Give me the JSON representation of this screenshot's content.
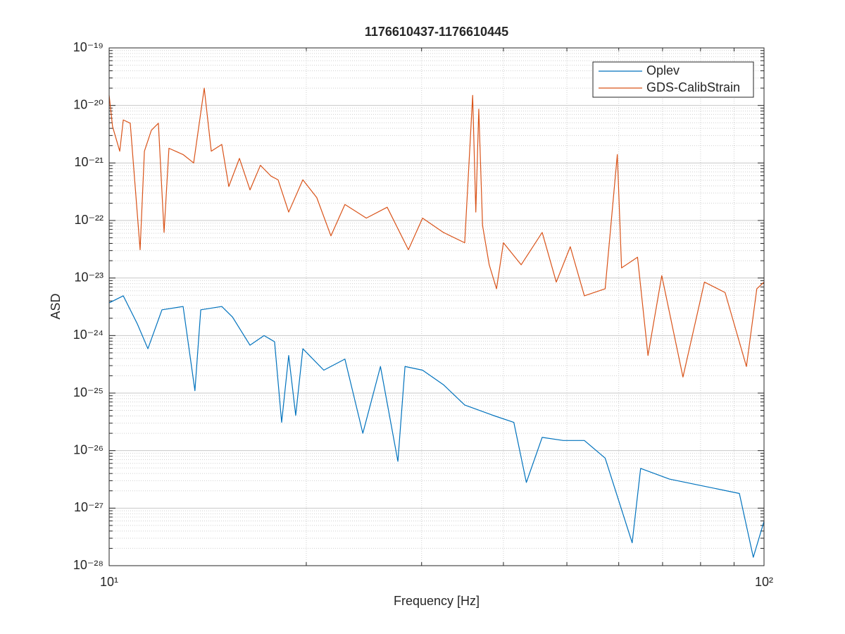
{
  "chart_data": {
    "type": "line",
    "title": "1176610437-1176610445",
    "xlabel": "Frequency [Hz]",
    "ylabel": "ASD",
    "xscale": "log",
    "yscale": "log",
    "grid": true,
    "minor_grid": true,
    "legend": "upper right",
    "xlim": [
      10,
      100
    ],
    "xticks": [
      {
        "value": 10,
        "label": "10¹"
      },
      {
        "value": 100,
        "label": "10²"
      }
    ],
    "ylim": [
      1e-28,
      1e-19
    ],
    "yticks": [
      {
        "value": 1e-28,
        "label": "10⁻²⁸"
      },
      {
        "value": 1e-27,
        "label": "10⁻²⁷"
      },
      {
        "value": 1e-26,
        "label": "10⁻²⁶"
      },
      {
        "value": 1e-25,
        "label": "10⁻²⁵"
      },
      {
        "value": 1e-24,
        "label": "10⁻²⁴"
      },
      {
        "value": 1e-23,
        "label": "10⁻²³"
      },
      {
        "value": 1e-22,
        "label": "10⁻²²"
      },
      {
        "value": 1e-21,
        "label": "10⁻²¹"
      },
      {
        "value": 1e-20,
        "label": "10⁻²⁰"
      },
      {
        "value": 1e-19,
        "label": "10⁻¹⁹"
      }
    ],
    "series": [
      {
        "name": "Oplev",
        "color": "#0072BD",
        "x": [
          10,
          10.51,
          11.04,
          11.46,
          12.04,
          12.97,
          13.52,
          13.8,
          14.86,
          15.43,
          16.41,
          17.24,
          17.89,
          18.34,
          18.8,
          19.27,
          19.76,
          21.27,
          22.91,
          24.4,
          25.96,
          27.6,
          28.3,
          30.1,
          32.39,
          34.91,
          38.56,
          41.49,
          43.36,
          45.84,
          49.37,
          53.17,
          57.2,
          62.9,
          64.8,
          71.7,
          81.1,
          91.7,
          96.3,
          100
        ],
        "values": [
          3.7e-24,
          4.9e-24,
          1.6e-24,
          5.9e-25,
          2.8e-24,
          3.2e-24,
          1.1e-25,
          2.8e-24,
          3.2e-24,
          2.1e-24,
          6.8e-25,
          1e-24,
          7.8e-25,
          3.1e-26,
          4.5e-25,
          4.1e-26,
          5.9e-25,
          2.5e-25,
          3.9e-25,
          2e-26,
          2.9e-25,
          6.5e-27,
          2.9e-25,
          2.5e-25,
          1.4e-25,
          6.2e-26,
          4.1e-26,
          3.1e-26,
          2.8e-27,
          1.7e-26,
          1.5e-26,
          1.5e-26,
          7.4e-27,
          2.5e-28,
          4.9e-27,
          3.2e-27,
          2.4e-27,
          1.8e-27,
          1.4e-28,
          5.9e-28
        ]
      },
      {
        "name": "GDS-CalibStrain",
        "color": "#D95319",
        "x": [
          10,
          10.12,
          10.38,
          10.51,
          10.77,
          11.15,
          11.32,
          11.6,
          11.89,
          12.13,
          12.34,
          12.97,
          13.46,
          13.97,
          14.32,
          14.86,
          15.23,
          15.81,
          16.41,
          17.02,
          17.67,
          18.11,
          18.8,
          19.76,
          20.75,
          21.81,
          22.91,
          24.7,
          26.58,
          28.64,
          30.1,
          32.39,
          34.91,
          35.9,
          36.3,
          36.68,
          37.17,
          38.05,
          39.04,
          40,
          42.58,
          45.84,
          48.17,
          50.6,
          53.17,
          57.2,
          59.7,
          60.6,
          64.1,
          66.5,
          69.8,
          75.2,
          81.1,
          87.2,
          94.0,
          97.5,
          100
        ],
        "values": [
          1.5e-20,
          4.3e-21,
          1.6e-21,
          5.6e-21,
          4.9e-21,
          3.1e-23,
          1.6e-21,
          3.7e-21,
          4.9e-21,
          6.2e-23,
          1.8e-21,
          1.4e-21,
          1e-21,
          2e-20,
          1.6e-21,
          2.1e-21,
          3.9e-22,
          1.2e-21,
          3.4e-22,
          9.1e-22,
          5.9e-22,
          5.1e-22,
          1.4e-22,
          5.1e-22,
          2.5e-22,
          5.4e-23,
          1.9e-22,
          1.1e-22,
          1.7e-22,
          3.1e-23,
          1.1e-22,
          6.2e-23,
          4.1e-23,
          1.5e-20,
          1.4e-22,
          8.6e-21,
          8.2e-23,
          1.7e-23,
          6.5e-24,
          4.1e-23,
          1.7e-23,
          6.2e-23,
          8.5e-24,
          3.5e-23,
          4.9e-24,
          6.5e-24,
          1.4e-21,
          1.5e-23,
          2.3e-23,
          4.5e-25,
          1.1e-23,
          1.9e-25,
          8.5e-24,
          5.6e-24,
          2.9e-25,
          6.5e-24,
          8.5e-24
        ]
      }
    ]
  }
}
